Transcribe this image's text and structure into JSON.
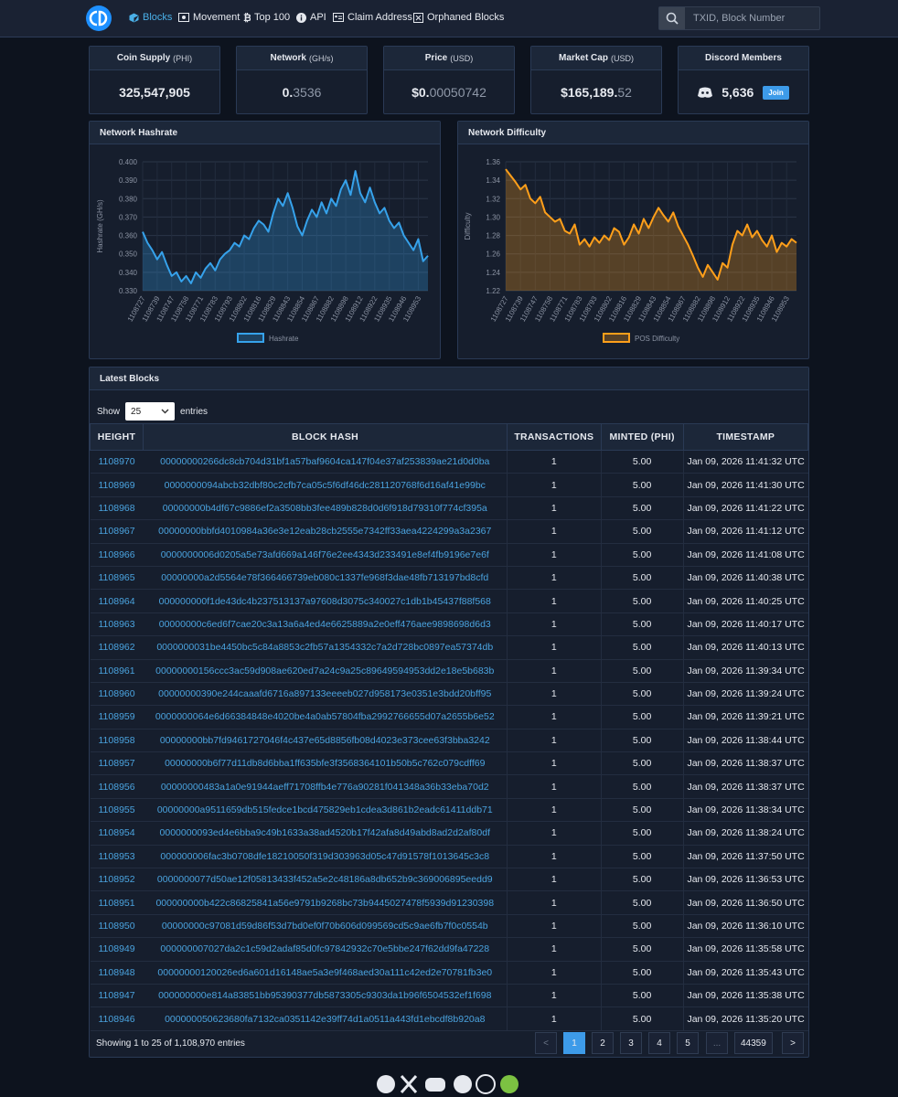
{
  "nav": {
    "links": [
      "Blocks",
      "Movement",
      "Top 100",
      "API",
      "Claim Address",
      "Orphaned Blocks"
    ],
    "search_placeholder": "TXID, Block Number"
  },
  "stats": [
    {
      "label": "Coin Supply",
      "unit": "(PHI)",
      "value": "325,547,905"
    },
    {
      "label": "Network",
      "unit": "(GH/s)",
      "value": "0.",
      "value_dim": "3536"
    },
    {
      "label": "Price",
      "unit": "(USD)",
      "value": "$0.",
      "value_dim": "00050742"
    },
    {
      "label": "Market Cap",
      "unit": "(USD)",
      "value": "$165,189.",
      "value_dim": "52"
    },
    {
      "label": "Discord Members",
      "value": "5,636",
      "button": "Join"
    }
  ],
  "chart_data": [
    {
      "type": "line",
      "title": "Network Hashrate",
      "ylabel": "Hashrate (GH/s)",
      "grid": true,
      "categories": [
        "1108727",
        null,
        null,
        "1108739",
        null,
        null,
        "1108747",
        null,
        null,
        "1108758",
        null,
        null,
        "1108771",
        null,
        null,
        "1108783",
        null,
        null,
        "1108793",
        null,
        null,
        "1108802",
        null,
        null,
        "1108816",
        null,
        null,
        "1108829",
        null,
        null,
        "1108843",
        null,
        null,
        "1108854",
        null,
        null,
        "1108867",
        null,
        null,
        "1108882",
        null,
        null,
        "1108898",
        null,
        null,
        "1108912",
        null,
        null,
        "1108922",
        null,
        null,
        "1108935",
        null,
        null,
        "1108946",
        null,
        null,
        "1108953",
        null,
        null
      ],
      "series": [
        {
          "name": "Hashrate",
          "color": "#36a2eb",
          "values": [
            0.362,
            0.356,
            0.352,
            0.347,
            0.351,
            0.344,
            0.338,
            0.34,
            0.335,
            0.338,
            0.334,
            0.34,
            0.337,
            0.342,
            0.345,
            0.341,
            0.347,
            0.35,
            0.352,
            0.356,
            0.354,
            0.36,
            0.358,
            0.364,
            0.368,
            0.366,
            0.362,
            0.372,
            0.38,
            0.376,
            0.383,
            0.375,
            0.365,
            0.36,
            0.368,
            0.374,
            0.37,
            0.378,
            0.372,
            0.38,
            0.376,
            0.385,
            0.39,
            0.382,
            0.395,
            0.383,
            0.378,
            0.386,
            0.378,
            0.372,
            0.375,
            0.368,
            0.364,
            0.367,
            0.36,
            0.356,
            0.352,
            0.358,
            0.346,
            0.349
          ]
        }
      ],
      "ylim": [
        0.33,
        0.4
      ],
      "yticks": [
        {
          "value": 0.33,
          "label": "0.330"
        },
        {
          "value": 0.34,
          "label": "0.340"
        },
        {
          "value": 0.35,
          "label": "0.350"
        },
        {
          "value": 0.36,
          "label": "0.360"
        },
        {
          "value": 0.37,
          "label": "0.370"
        },
        {
          "value": 0.38,
          "label": "0.380"
        },
        {
          "value": 0.39,
          "label": "0.390"
        },
        {
          "value": 0.4,
          "label": "0.400"
        }
      ]
    },
    {
      "type": "line",
      "title": "Network Difficulty",
      "ylabel": "Difficulty",
      "grid": true,
      "categories": [
        "1108727",
        null,
        null,
        "1108739",
        null,
        null,
        "1108747",
        null,
        null,
        "1108758",
        null,
        null,
        "1108771",
        null,
        null,
        "1108783",
        null,
        null,
        "1108793",
        null,
        null,
        "1108802",
        null,
        null,
        "1108816",
        null,
        null,
        "1108829",
        null,
        null,
        "1108843",
        null,
        null,
        "1108854",
        null,
        null,
        "1108867",
        null,
        null,
        "1108882",
        null,
        null,
        "1108898",
        null,
        null,
        "1108912",
        null,
        null,
        "1108922",
        null,
        null,
        "1108935",
        null,
        null,
        "1108946",
        null,
        null,
        "1108953",
        null,
        null
      ],
      "series": [
        {
          "name": "POS Difficulty",
          "color": "#ff9f1a",
          "values": [
            1.352,
            1.345,
            1.338,
            1.33,
            1.335,
            1.32,
            1.315,
            1.322,
            1.305,
            1.3,
            1.295,
            1.298,
            1.285,
            1.282,
            1.292,
            1.27,
            1.276,
            1.268,
            1.278,
            1.272,
            1.28,
            1.275,
            1.288,
            1.284,
            1.27,
            1.278,
            1.292,
            1.282,
            1.298,
            1.288,
            1.3,
            1.31,
            1.302,
            1.295,
            1.305,
            1.29,
            1.28,
            1.27,
            1.258,
            1.245,
            1.235,
            1.248,
            1.24,
            1.232,
            1.25,
            1.245,
            1.27,
            1.285,
            1.28,
            1.292,
            1.278,
            1.285,
            1.275,
            1.268,
            1.28,
            1.262,
            1.272,
            1.268,
            1.276,
            1.272
          ]
        }
      ],
      "ylim": [
        1.22,
        1.36
      ],
      "yticks": [
        1.22,
        1.24,
        1.26,
        1.28,
        {
          "value": 1.3,
          "label": "1.30"
        },
        1.32,
        1.34,
        1.36
      ]
    }
  ],
  "table": {
    "title": "Latest Blocks",
    "show": "Show",
    "length": "25",
    "entries": "entries",
    "columns": [
      "HEIGHT",
      "BLOCK HASH",
      "TRANSACTIONS",
      "MINTED (PHI)",
      "TIMESTAMP"
    ],
    "rows": [
      [
        "1108970",
        "00000000266dc8cb704d31bf1a57baf9604ca147f04e37af253839ae21d0d0ba",
        "1",
        "5.00",
        "Jan 09, 2026 11:41:32 UTC"
      ],
      [
        "1108969",
        "0000000094abcb32dbf80c2cfb7ca05c5f6df46dc281120768f6d16af41e99bc",
        "1",
        "5.00",
        "Jan 09, 2026 11:41:30 UTC"
      ],
      [
        "1108968",
        "00000000b4df67c9886ef2a3508bb3fee489b828d0d6f918d79310f774cf395a",
        "1",
        "5.00",
        "Jan 09, 2026 11:41:22 UTC"
      ],
      [
        "1108967",
        "00000000bbfd4010984a36e3e12eab28cb2555e7342ff33aea4224299a3a2367",
        "1",
        "5.00",
        "Jan 09, 2026 11:41:12 UTC"
      ],
      [
        "1108966",
        "0000000006d0205a5e73afd669a146f76e2ee4343d233491e8ef4fb9196e7e6f",
        "1",
        "5.00",
        "Jan 09, 2026 11:41:08 UTC"
      ],
      [
        "1108965",
        "00000000a2d5564e78f366466739eb080c1337fe968f3dae48fb713197bd8cfd",
        "1",
        "5.00",
        "Jan 09, 2026 11:40:38 UTC"
      ],
      [
        "1108964",
        "000000000f1de43dc4b237513137a97608d3075c340027c1db1b45437f88f568",
        "1",
        "5.00",
        "Jan 09, 2026 11:40:25 UTC"
      ],
      [
        "1108963",
        "00000000c6ed6f7cae20c3a13a6a4ed4e6625889a2e0eff476aee9898698d6d3",
        "1",
        "5.00",
        "Jan 09, 2026 11:40:17 UTC"
      ],
      [
        "1108962",
        "0000000031be4450bc5c84a8853c2fb57a1354332c7a2d728bc0897ea57374db",
        "1",
        "5.00",
        "Jan 09, 2026 11:40:13 UTC"
      ],
      [
        "1108961",
        "00000000156ccc3ac59d908ae620ed7a24c9a25c89649594953dd2e18e5b683b",
        "1",
        "5.00",
        "Jan 09, 2026 11:39:34 UTC"
      ],
      [
        "1108960",
        "00000000390e244caaafd6716a897133eeeeb027d958173e0351e3bdd20bff95",
        "1",
        "5.00",
        "Jan 09, 2026 11:39:24 UTC"
      ],
      [
        "1108959",
        "0000000064e6d66384848e4020be4a0ab57804fba2992766655d07a2655b6e52",
        "1",
        "5.00",
        "Jan 09, 2026 11:39:21 UTC"
      ],
      [
        "1108958",
        "00000000bb7fd9461727046f4c437e65d8856fb08d4023e373cee63f3bba3242",
        "1",
        "5.00",
        "Jan 09, 2026 11:38:44 UTC"
      ],
      [
        "1108957",
        "00000000b6f77d11db8d6bba1ff635bfe3f3568364101b50b5c762c079cdff69",
        "1",
        "5.00",
        "Jan 09, 2026 11:38:37 UTC"
      ],
      [
        "1108956",
        "00000000483a1a0e91944aeff71708ffb4e776a90281f041348a36b33eba70d2",
        "1",
        "5.00",
        "Jan 09, 2026 11:38:37 UTC"
      ],
      [
        "1108955",
        "00000000a9511659db515fedce1bcd475829eb1cdea3d861b2eadc61411ddb71",
        "1",
        "5.00",
        "Jan 09, 2026 11:38:34 UTC"
      ],
      [
        "1108954",
        "0000000093ed4e6bba9c49b1633a38ad4520b17f42afa8d49abd8ad2d2af80df",
        "1",
        "5.00",
        "Jan 09, 2026 11:38:24 UTC"
      ],
      [
        "1108953",
        "000000006fac3b0708dfe18210050f319d303963d05c47d91578f1013645c3c8",
        "1",
        "5.00",
        "Jan 09, 2026 11:37:50 UTC"
      ],
      [
        "1108952",
        "0000000077d50ae12f05813433f452a5e2c48186a8db652b9c369006895eedd9",
        "1",
        "5.00",
        "Jan 09, 2026 11:36:53 UTC"
      ],
      [
        "1108951",
        "000000000b422c86825841a56e9791b9268bc73b9445027478f5939d91230398",
        "1",
        "5.00",
        "Jan 09, 2026 11:36:50 UTC"
      ],
      [
        "1108950",
        "00000000c97081d59d86f53d7bd0ef0f70b606d099569cd5c9ae6fb7f0c0554b",
        "1",
        "5.00",
        "Jan 09, 2026 11:36:10 UTC"
      ],
      [
        "1108949",
        "000000007027da2c1c59d2adaf85d0fc97842932c70e5bbe247f62dd9fa47228",
        "1",
        "5.00",
        "Jan 09, 2026 11:35:58 UTC"
      ],
      [
        "1108948",
        "00000000120026ed6a601d16148ae5a3e9f468aed30a111c42ed2e70781fb3e0",
        "1",
        "5.00",
        "Jan 09, 2026 11:35:43 UTC"
      ],
      [
        "1108947",
        "000000000e814a83851bb95390377db5873305c9303da1b96f6504532ef1f698",
        "1",
        "5.00",
        "Jan 09, 2026 11:35:38 UTC"
      ],
      [
        "1108946",
        "000000050623680fa7132ca0351142e39ff74d1a0511a443fd1ebcdf8b920a8",
        "1",
        "5.00",
        "Jan 09, 2026 11:35:20 UTC"
      ]
    ],
    "info": "Showing 1 to 25 of 1,108,970 entries",
    "pages": [
      "<",
      "1",
      "2",
      "3",
      "4",
      "5",
      "...",
      "44359",
      ">"
    ]
  }
}
